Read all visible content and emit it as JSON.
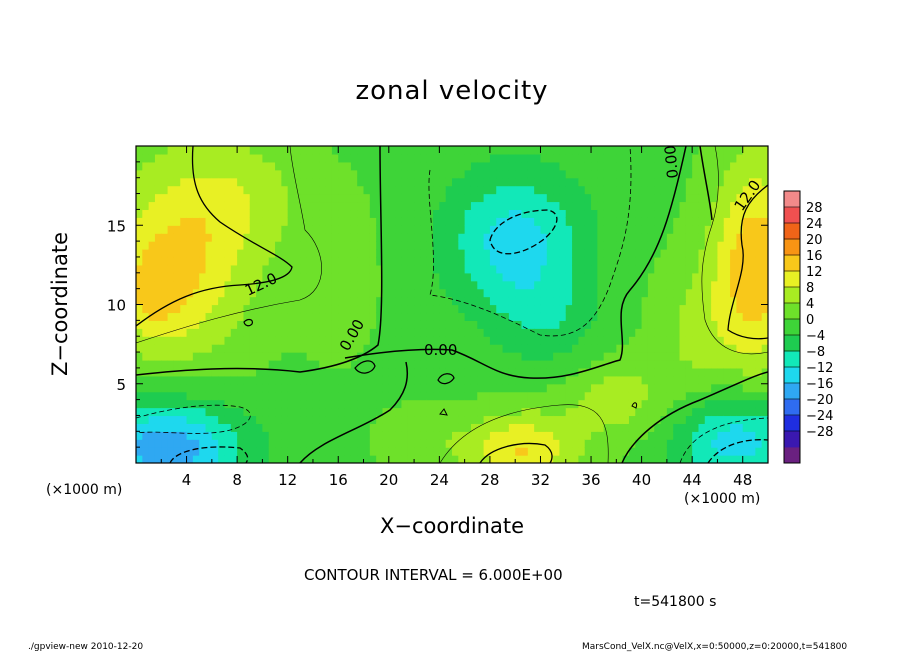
{
  "chart_data": {
    "type": "heatmap",
    "title": "zonal velocity",
    "xlabel": "X−coordinate",
    "ylabel": "Z−coordinate",
    "x_unit_label": "(×1000 m)",
    "xlim": [
      0,
      50
    ],
    "ylim": [
      0,
      20
    ],
    "x_ticks": [
      4,
      8,
      12,
      16,
      20,
      24,
      28,
      32,
      36,
      40,
      44,
      48
    ],
    "y_ticks": [
      5,
      10,
      15
    ],
    "colorbar": {
      "ticks": [
        "28",
        "24",
        "20",
        "16",
        "12",
        "8",
        "4",
        "0",
        "−4",
        "−8",
        "−12",
        "−16",
        "−20",
        "−24",
        "−28"
      ],
      "colors": [
        "#6a2080",
        "#3a18b0",
        "#1f2ee0",
        "#2f6cf0",
        "#2fa8f2",
        "#1ed8ee",
        "#12e8b8",
        "#1ecc50",
        "#3ed438",
        "#6ee12a",
        "#a8ec22",
        "#e8f024",
        "#f8c81a",
        "#f89414",
        "#f06418",
        "#f05050",
        "#f28a8a"
      ]
    },
    "contour_labels": [
      "12.0",
      "0.00",
      "0.00",
      "0.00",
      "12.0"
    ],
    "contour_interval_text": "CONTOUR INTERVAL = 6.000E+00",
    "time_text": "t=541800 s",
    "footer_left": "./gpview-new   2010-12-20",
    "footer_right": "MarsCond_VelX.nc@VelX,x=0:50000,z=0:20000,t=541800",
    "field_blobs": [
      {
        "x": 3.5,
        "z": 13.0,
        "rx": 6.0,
        "rz": 6.5,
        "u": 13
      },
      {
        "x": 1.0,
        "z": 10.5,
        "rx": 3.0,
        "rz": 3.0,
        "u": 6
      },
      {
        "x": 9.0,
        "z": 17.0,
        "rx": 5.0,
        "rz": 4.0,
        "u": 5
      },
      {
        "x": 49.0,
        "z": 12.5,
        "rx": 3.5,
        "rz": 7.0,
        "u": 16
      },
      {
        "x": 30.0,
        "z": 14.0,
        "rx": 5.5,
        "rz": 4.5,
        "u": -13
      },
      {
        "x": 32.5,
        "z": 9.0,
        "rx": 4.0,
        "rz": 3.0,
        "u": -5
      },
      {
        "x": 2.5,
        "z": 1.0,
        "rx": 6.0,
        "rz": 3.0,
        "u": -18
      },
      {
        "x": 47.5,
        "z": 1.5,
        "rx": 5.0,
        "rz": 3.0,
        "u": -14
      },
      {
        "x": 30.5,
        "z": 0.8,
        "rx": 4.5,
        "rz": 2.5,
        "u": 13
      },
      {
        "x": 38.0,
        "z": 4.0,
        "rx": 4.0,
        "rz": 2.5,
        "u": 7
      },
      {
        "x": 22.5,
        "z": 1.5,
        "rx": 3.5,
        "rz": 2.0,
        "u": 4
      },
      {
        "x": 44.0,
        "z": 8.0,
        "rx": 3.5,
        "rz": 5.0,
        "u": 5
      },
      {
        "x": 16.0,
        "z": 12.0,
        "rx": 3.0,
        "rz": 5.0,
        "u": 4
      }
    ]
  }
}
